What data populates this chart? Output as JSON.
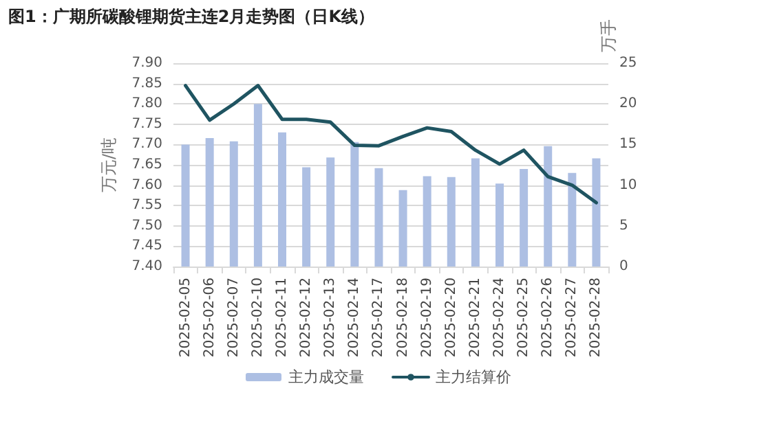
{
  "chart_data": {
    "type": "bar",
    "title": "图1：广期所碳酸锂期货主连2月走势图（日K线）",
    "categories": [
      "2025-02-05",
      "2025-02-06",
      "2025-02-07",
      "2025-02-10",
      "2025-02-11",
      "2025-02-12",
      "2025-02-13",
      "2025-02-14",
      "2025-02-17",
      "2025-02-18",
      "2025-02-19",
      "2025-02-20",
      "2025-02-21",
      "2025-02-24",
      "2025-02-25",
      "2025-02-26",
      "2025-02-27",
      "2025-02-28"
    ],
    "series": [
      {
        "name": "主力成交量",
        "axis": "y2",
        "color": "#adbfe3",
        "values": [
          15.0,
          15.8,
          15.4,
          20.0,
          16.5,
          12.2,
          13.4,
          15.3,
          12.1,
          9.4,
          11.1,
          11.0,
          13.3,
          10.2,
          12.0,
          14.8,
          11.5,
          13.3
        ]
      },
      {
        "name": "主力结算价",
        "type": "line",
        "color": "#1f5461",
        "values": [
          7.845,
          7.76,
          7.8,
          7.845,
          7.762,
          7.762,
          7.755,
          7.698,
          7.697,
          7.72,
          7.741,
          7.732,
          7.686,
          7.652,
          7.686,
          7.621,
          7.6,
          7.557
        ]
      }
    ],
    "ylabel": "万元/吨",
    "y2label": "万手",
    "ylim": [
      7.4,
      7.9
    ],
    "yticks": [
      {
        "value": 7.4,
        "label": "7.40"
      },
      {
        "value": 7.45,
        "label": "7.45"
      },
      {
        "value": 7.5,
        "label": "7.50"
      },
      {
        "value": 7.55,
        "label": "7.55"
      },
      {
        "value": 7.6,
        "label": "7.60"
      },
      {
        "value": 7.65,
        "label": "7.65"
      },
      {
        "value": 7.7,
        "label": "7.70"
      },
      {
        "value": 7.75,
        "label": "7.75"
      },
      {
        "value": 7.8,
        "label": "7.80"
      },
      {
        "value": 7.85,
        "label": "7.85"
      },
      {
        "value": 7.9,
        "label": "7.90"
      }
    ],
    "y2lim": [
      0,
      25
    ],
    "y2ticks": [
      0,
      5,
      10,
      15,
      20,
      25
    ],
    "grid": "y",
    "legend": "bottom",
    "marker": "none",
    "line_style": "solid"
  }
}
